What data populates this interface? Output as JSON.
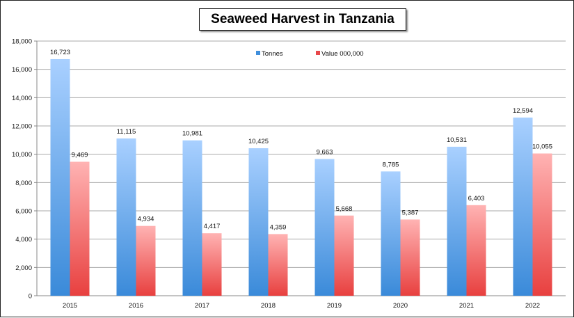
{
  "chart_data": {
    "type": "bar",
    "title": "Seaweed Harvest in Tanzania",
    "xlabel": "",
    "ylabel": "",
    "categories": [
      "2015",
      "2016",
      "2017",
      "2018",
      "2019",
      "2020",
      "2021",
      "2022"
    ],
    "series": [
      {
        "name": "Tonnes",
        "values": [
          16723,
          11115,
          10981,
          10425,
          9663,
          8785,
          10531,
          12594
        ],
        "labels": [
          "16,723",
          "11,115",
          "10,981",
          "10,425",
          "9,663",
          "8,785",
          "10,531",
          "12,594"
        ],
        "color": "#3f8fdc"
      },
      {
        "name": "Value 000,000",
        "values": [
          9469,
          4934,
          4417,
          4359,
          5668,
          5387,
          6403,
          10055
        ],
        "labels": [
          "9,469",
          "4,934",
          "4,417",
          "4,359",
          "5,668",
          "5,387",
          "6,403",
          "10,055"
        ],
        "color": "#e8484a"
      }
    ],
    "ylim": [
      0,
      18000
    ],
    "yticks": [
      0,
      2000,
      4000,
      6000,
      8000,
      10000,
      12000,
      14000,
      16000,
      18000
    ],
    "ytick_labels": [
      "0",
      "2,000",
      "4,000",
      "6,000",
      "8,000",
      "10,000",
      "12,000",
      "14,000",
      "16,000",
      "18,000"
    ],
    "grid": true,
    "legend_position": "top-center"
  }
}
